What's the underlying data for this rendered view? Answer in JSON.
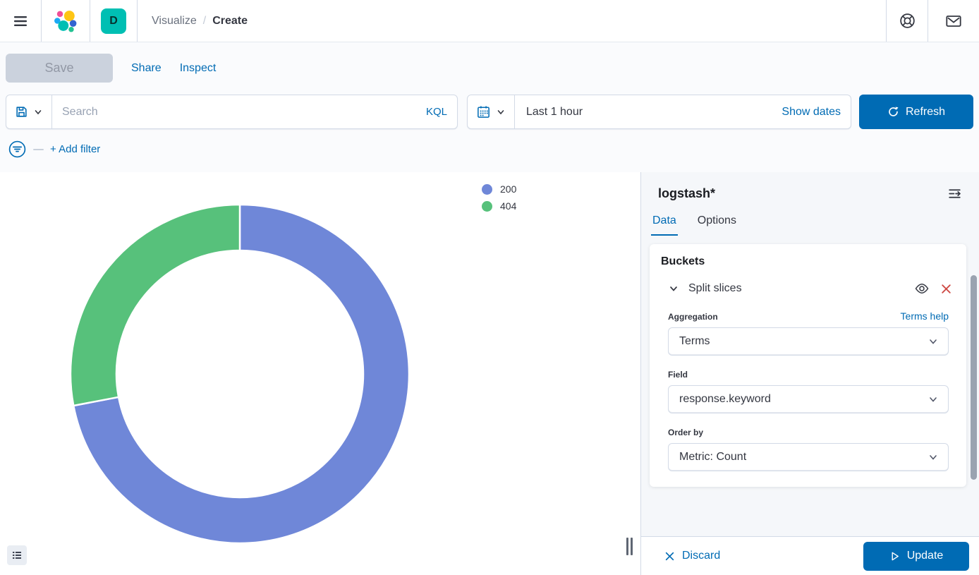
{
  "header": {
    "breadcrumb": {
      "section": "Visualize",
      "separator": "/",
      "current": "Create"
    },
    "space_initial": "D"
  },
  "toolbar": {
    "save": "Save",
    "save_enabled": false,
    "share": "Share",
    "inspect": "Inspect",
    "search_placeholder": "Search",
    "query_language": "KQL",
    "time_range": "Last 1 hour",
    "show_dates": "Show dates",
    "refresh": "Refresh",
    "add_filter": "+ Add filter"
  },
  "chart_data": {
    "type": "pie",
    "donut": true,
    "title": "",
    "categories": [
      "200",
      "404"
    ],
    "values": [
      72,
      28
    ],
    "unit": "percent_of_total",
    "colors": [
      "#6F87D8",
      "#57C17B"
    ],
    "legend_position": "top-right",
    "start_angle_deg": 0,
    "clockwise": true,
    "inner_radius_ratio": 0.73
  },
  "sidebar": {
    "title": "logstash*",
    "tabs": {
      "data": "Data",
      "options": "Options"
    },
    "active_tab": "Data",
    "buckets": {
      "heading": "Buckets",
      "bucket_type": "Split slices",
      "aggregation_label": "Aggregation",
      "aggregation_help": "Terms help",
      "aggregation_value": "Terms",
      "field_label": "Field",
      "field_value": "response.keyword",
      "order_by_label": "Order by",
      "order_by_value": "Metric: Count"
    },
    "footer": {
      "discard": "Discard",
      "update": "Update"
    }
  },
  "colors": {
    "primary": "#006BB4",
    "badge": "#00BFB3",
    "danger": "#CE4A44",
    "text": "#343741",
    "subdued": "#69707D",
    "border": "#D3DAE6"
  }
}
